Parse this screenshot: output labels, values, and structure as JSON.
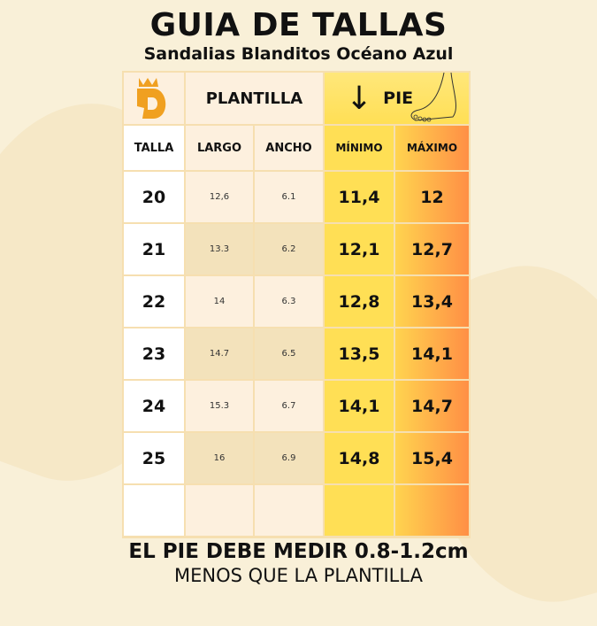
{
  "title": "GUIA DE TALLAS",
  "subtitle": "Sandalias Blanditos Océano Azul",
  "header": {
    "plantilla": "PLANTILLA",
    "pie": "PIE",
    "talla": "TALLA",
    "largo": "LARGO",
    "ancho": "ANCHO",
    "minimo": "MÍNIMO",
    "maximo": "MÁXIMO",
    "logo_letter": "D"
  },
  "rows": [
    {
      "talla": "20",
      "largo": "12,6",
      "ancho": "6.1",
      "min": "11,4",
      "max": "12"
    },
    {
      "talla": "21",
      "largo": "13.3",
      "ancho": "6.2",
      "min": "12,1",
      "max": "12,7"
    },
    {
      "talla": "22",
      "largo": "14",
      "ancho": "6.3",
      "min": "12,8",
      "max": "13,4"
    },
    {
      "talla": "23",
      "largo": "14.7",
      "ancho": "6.5",
      "min": "13,5",
      "max": "14,1"
    },
    {
      "talla": "24",
      "largo": "15.3",
      "ancho": "6.7",
      "min": "14,1",
      "max": "14,7"
    },
    {
      "talla": "25",
      "largo": "16",
      "ancho": "6.9",
      "min": "14,8",
      "max": "15,4"
    }
  ],
  "footer": {
    "line1": "EL PIE DEBE MEDIR 0.8-1.2cm",
    "line2": "MENOS QUE LA PLANTILLA"
  },
  "colors": {
    "logo": "#f0a020",
    "yellow": "#ffdf55",
    "orange": "#ff8f45",
    "background": "#f9f0d8"
  }
}
